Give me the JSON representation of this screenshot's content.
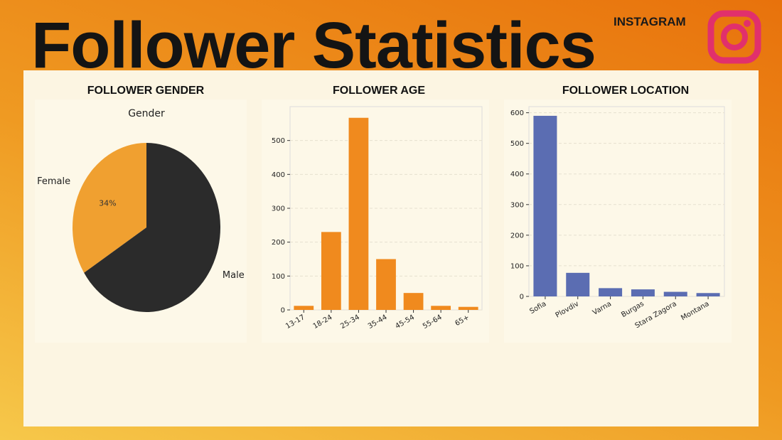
{
  "page": {
    "title": "Follower Statistics",
    "brand": "INSTAGRAM",
    "logo_icon": "instagram-icon",
    "colors": {
      "background_gradient": [
        "#e8720c",
        "#f6c84a"
      ],
      "panel": "#fcf5e2",
      "logo": "#e1306c"
    }
  },
  "charts": {
    "gender_title": "FOLLOWER GENDER",
    "age_title": "FOLLOWER AGE",
    "location_title": "FOLLOWER LOCATION"
  },
  "chart_data": [
    {
      "type": "pie",
      "title": "Gender",
      "labels": [
        "Female",
        "Male"
      ],
      "values": [
        34,
        66
      ],
      "label_display": [
        "34%",
        ""
      ],
      "colors": [
        "#f0a030",
        "#2b2b2b"
      ]
    },
    {
      "type": "bar",
      "title": "",
      "categories": [
        "13-17",
        "18-24",
        "25-34",
        "35-44",
        "45-54",
        "55-64",
        "65+"
      ],
      "values": [
        12,
        230,
        567,
        150,
        50,
        12,
        9
      ],
      "ylim": [
        0,
        600
      ],
      "yticks": [
        0,
        100,
        200,
        300,
        400,
        500
      ],
      "grid": true,
      "color": "#f08a1e"
    },
    {
      "type": "bar",
      "title": "",
      "categories": [
        "Sofia",
        "Plovdiv",
        "Varna",
        "Burgas",
        "Stara Zagora",
        "Montana"
      ],
      "values": [
        590,
        77,
        27,
        23,
        15,
        11
      ],
      "ylim": [
        0,
        620
      ],
      "yticks": [
        0,
        100,
        200,
        300,
        400,
        500,
        600
      ],
      "grid": true,
      "color": "#5b6db2"
    }
  ]
}
